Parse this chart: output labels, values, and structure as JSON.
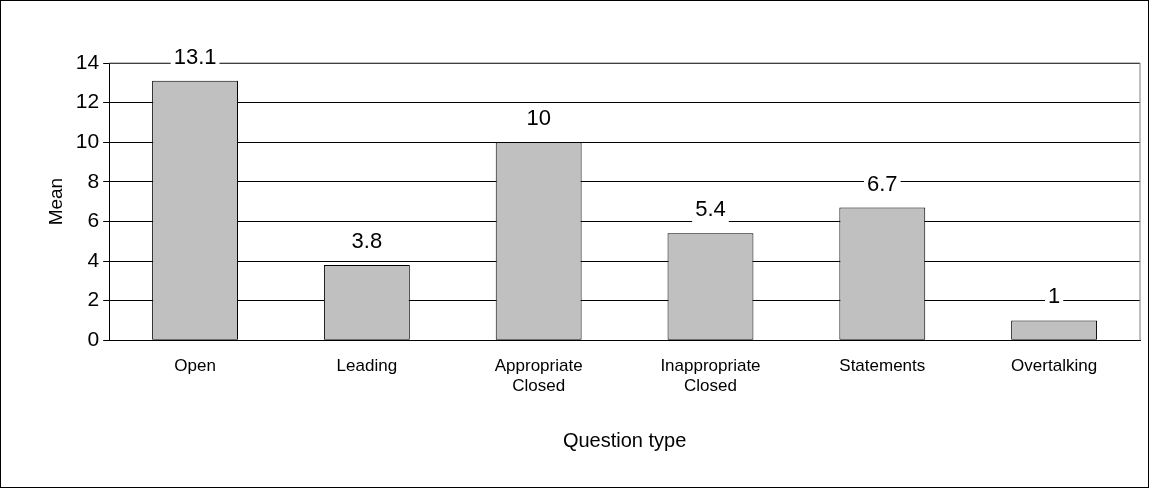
{
  "chart_data": {
    "type": "bar",
    "xlabel": "Question type",
    "ylabel": "Mean",
    "categories": [
      "Open",
      "Leading",
      "Appropriate Closed",
      "Inappropriate Closed",
      "Statements",
      "Overtalking"
    ],
    "values": [
      13.1,
      3.8,
      10,
      5.4,
      6.7,
      1
    ],
    "color": "#c0c0c0",
    "ylim": [
      0,
      14
    ],
    "yticks": [
      0,
      2,
      4,
      6,
      8,
      10,
      12,
      14
    ],
    "grid": "y",
    "data_labels": true
  }
}
